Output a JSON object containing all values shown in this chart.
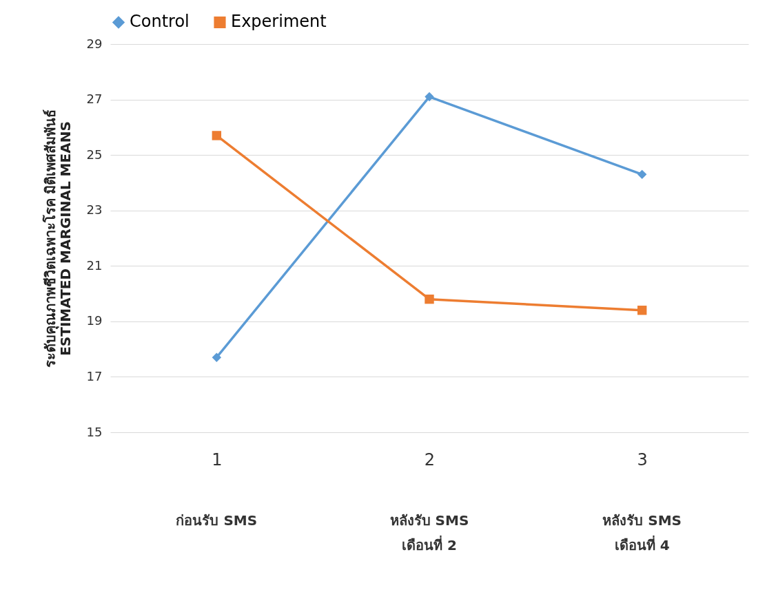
{
  "chart_data": {
    "type": "line",
    "ylabel": "ระดับคุณภาพชีวิตเฉพาะโรค มิติเพศสัมพันธ์\nESTIMATED MARGINAL MEANS",
    "categories": [
      "1",
      "2",
      "3"
    ],
    "series": [
      {
        "name": "Control",
        "color": "#5b9bd5",
        "marker": "diamond",
        "values": [
          17.7,
          27.1,
          24.3
        ]
      },
      {
        "name": "Experiment",
        "color": "#ed7d31",
        "marker": "square",
        "values": [
          25.7,
          19.8,
          19.4
        ]
      }
    ],
    "ylim": [
      15,
      29
    ],
    "yticks": [
      15,
      17,
      19,
      21,
      23,
      25,
      27,
      29
    ],
    "grid": "y",
    "legend": "top",
    "annotations": [
      "ก่อนรับ SMS",
      "หลังรับ SMS\nเดือนที่ 2",
      "หลังรับ SMS\nเดือนที่ 4"
    ]
  }
}
